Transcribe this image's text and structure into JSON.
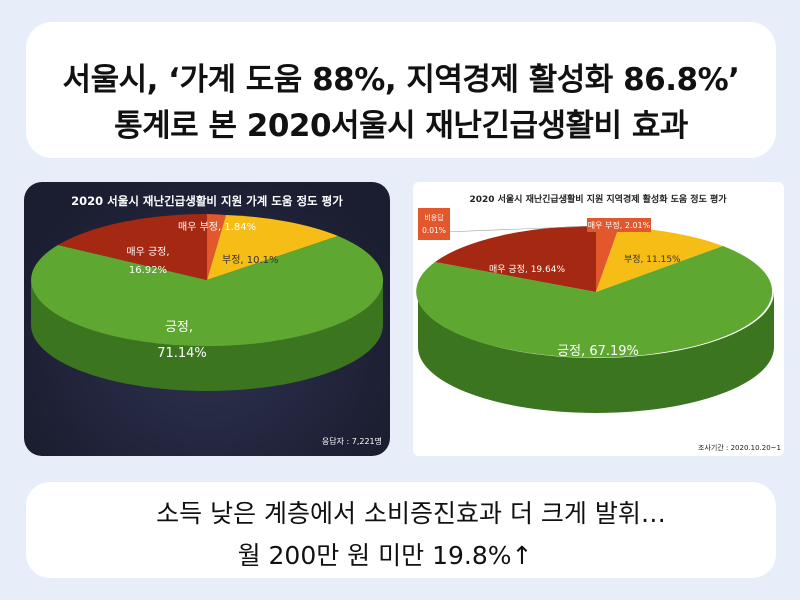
{
  "header": {
    "line1": "서울시, ‘가계 도움 88%, 지역경제 활성화 86.8%’",
    "line2": "통계로 본 2020서울시 재난긴급생활비 효과"
  },
  "footer": {
    "line1": "소득 낮은 계층에서 소비증진효과 더 크게 발휘…",
    "line2": "월 200만 원 미만 19.8%↑"
  },
  "chart_data": [
    {
      "type": "pie",
      "title": "2020 서울시 재난긴급생활비 지원 가계 도움 정도 평가",
      "note": "응답자 : 7,221명",
      "slices": [
        {
          "label": "매우 부정,",
          "value": 1.84,
          "text": "1.84%",
          "color": "#e2572c"
        },
        {
          "label": "부정,",
          "value": 10.1,
          "text": "10.1%",
          "color": "#f6bd16"
        },
        {
          "label": "긍정,",
          "value": 71.14,
          "text": "71.14%",
          "color": "#5ea832"
        },
        {
          "label": "매우 긍정,",
          "value": 16.92,
          "text": "16.92%",
          "color": "#a52912"
        }
      ]
    },
    {
      "type": "pie",
      "title": "2020 서울시 재난긴급생활비 지원 지역경제 활성화 도움 정도 평가",
      "note": "조사기간 : 2020.10.20~1",
      "slices": [
        {
          "label": "비응답",
          "value": 0.01,
          "text": "0.01%",
          "color": "#e2572c"
        },
        {
          "label": "매우 부정,",
          "value": 2.01,
          "text": "2.01%",
          "color": "#e2572c"
        },
        {
          "label": "부정,",
          "value": 11.15,
          "text": "11.15%",
          "color": "#f6bd16"
        },
        {
          "label": "긍정,",
          "value": 67.19,
          "text": "67.19%",
          "color": "#5ea832"
        },
        {
          "label": "매우 긍정,",
          "value": 19.64,
          "text": "19.64%",
          "color": "#a52912"
        }
      ]
    }
  ]
}
